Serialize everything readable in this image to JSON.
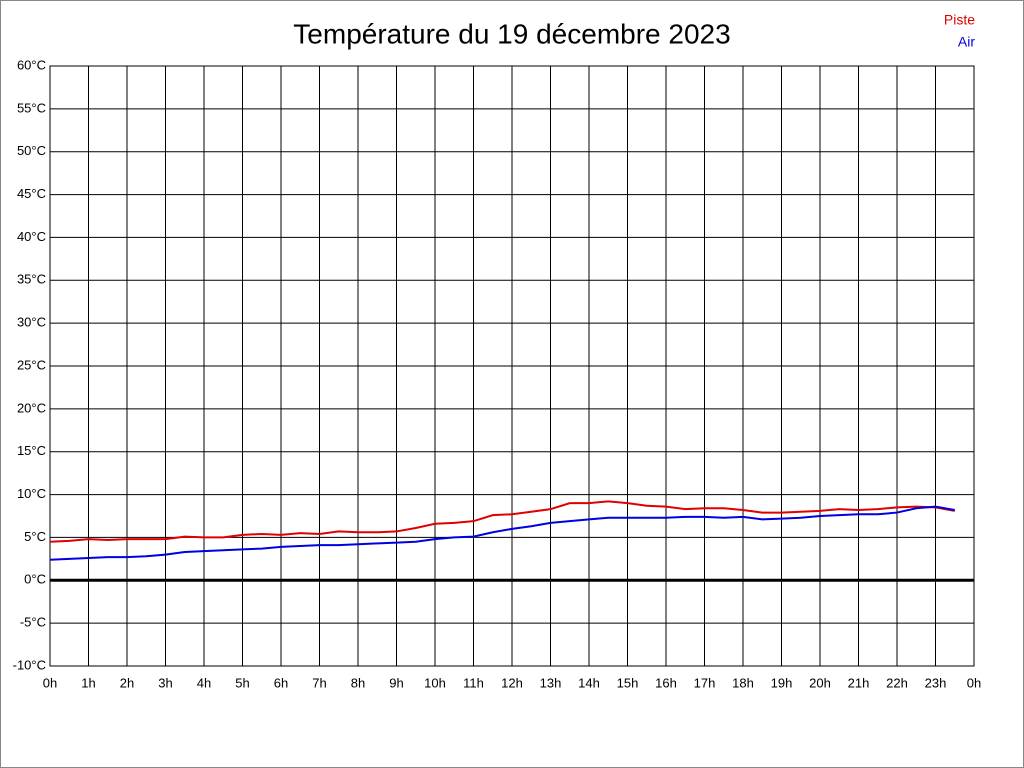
{
  "chart_data": {
    "type": "line",
    "title": "Température du 19 décembre 2023",
    "x": [
      0,
      0.5,
      1,
      1.5,
      2,
      2.5,
      3,
      3.5,
      4,
      4.5,
      5,
      5.5,
      6,
      6.5,
      7,
      7.5,
      8,
      8.5,
      9,
      9.5,
      10,
      10.5,
      11,
      11.5,
      12,
      12.5,
      13,
      13.5,
      14,
      14.5,
      15,
      15.5,
      16,
      16.5,
      17,
      17.5,
      18,
      18.5,
      19,
      19.5,
      20,
      20.5,
      21,
      21.5,
      22,
      22.5,
      23,
      23.5
    ],
    "series": [
      {
        "name": "Piste",
        "color": "#e00000",
        "values": [
          4.5,
          4.6,
          4.8,
          4.7,
          4.8,
          4.8,
          4.8,
          5.1,
          5.0,
          5.0,
          5.3,
          5.4,
          5.3,
          5.5,
          5.4,
          5.7,
          5.6,
          5.6,
          5.7,
          6.1,
          6.6,
          6.7,
          6.9,
          7.6,
          7.7,
          8.0,
          8.3,
          9.0,
          9.0,
          9.2,
          9.0,
          8.7,
          8.6,
          8.3,
          8.4,
          8.4,
          8.2,
          7.9,
          7.9,
          8.0,
          8.1,
          8.3,
          8.2,
          8.3,
          8.5,
          8.6,
          8.5,
          8.1
        ]
      },
      {
        "name": "Air",
        "color": "#0000e0",
        "values": [
          2.4,
          2.5,
          2.6,
          2.7,
          2.7,
          2.8,
          3.0,
          3.3,
          3.4,
          3.5,
          3.6,
          3.7,
          3.9,
          4.0,
          4.1,
          4.1,
          4.2,
          4.3,
          4.4,
          4.5,
          4.8,
          5.0,
          5.1,
          5.6,
          6.0,
          6.3,
          6.7,
          6.9,
          7.1,
          7.3,
          7.3,
          7.3,
          7.3,
          7.4,
          7.4,
          7.3,
          7.4,
          7.1,
          7.2,
          7.3,
          7.5,
          7.6,
          7.7,
          7.7,
          7.9,
          8.4,
          8.6,
          8.2
        ]
      }
    ],
    "xlim": [
      0,
      24
    ],
    "xticks": [
      {
        "value": 0,
        "label": "0h"
      },
      {
        "value": 1,
        "label": "1h"
      },
      {
        "value": 2,
        "label": "2h"
      },
      {
        "value": 3,
        "label": "3h"
      },
      {
        "value": 4,
        "label": "4h"
      },
      {
        "value": 5,
        "label": "5h"
      },
      {
        "value": 6,
        "label": "6h"
      },
      {
        "value": 7,
        "label": "7h"
      },
      {
        "value": 8,
        "label": "8h"
      },
      {
        "value": 9,
        "label": "9h"
      },
      {
        "value": 10,
        "label": "10h"
      },
      {
        "value": 11,
        "label": "11h"
      },
      {
        "value": 12,
        "label": "12h"
      },
      {
        "value": 13,
        "label": "13h"
      },
      {
        "value": 14,
        "label": "14h"
      },
      {
        "value": 15,
        "label": "15h"
      },
      {
        "value": 16,
        "label": "16h"
      },
      {
        "value": 17,
        "label": "17h"
      },
      {
        "value": 18,
        "label": "18h"
      },
      {
        "value": 19,
        "label": "19h"
      },
      {
        "value": 20,
        "label": "20h"
      },
      {
        "value": 21,
        "label": "21h"
      },
      {
        "value": 22,
        "label": "22h"
      },
      {
        "value": 23,
        "label": "23h"
      },
      {
        "value": 24,
        "label": "0h"
      }
    ],
    "ylim": [
      -10,
      60
    ],
    "yticks": [
      {
        "value": -10,
        "label": "-10°C"
      },
      {
        "value": -5,
        "label": "-5°C"
      },
      {
        "value": 0,
        "label": "0°C"
      },
      {
        "value": 5,
        "label": "5°C"
      },
      {
        "value": 10,
        "label": "10°C"
      },
      {
        "value": 15,
        "label": "15°C"
      },
      {
        "value": 20,
        "label": "20°C"
      },
      {
        "value": 25,
        "label": "25°C"
      },
      {
        "value": 30,
        "label": "30°C"
      },
      {
        "value": 35,
        "label": "35°C"
      },
      {
        "value": 40,
        "label": "40°C"
      },
      {
        "value": 45,
        "label": "45°C"
      },
      {
        "value": 50,
        "label": "50°C"
      },
      {
        "value": 55,
        "label": "55°C"
      },
      {
        "value": 60,
        "label": "60°C"
      }
    ],
    "grid": true,
    "legend": "top-right"
  }
}
